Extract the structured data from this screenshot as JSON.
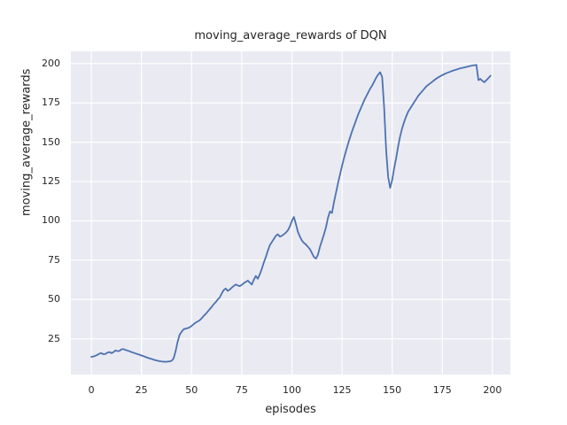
{
  "chart_data": {
    "type": "line",
    "title": "moving_average_rewards of DQN",
    "xlabel": "episodes",
    "ylabel": "moving_average_rewards",
    "xlim": [
      -10.2,
      208.9
    ],
    "ylim": [
      2.3,
      207.8
    ],
    "xticks": [
      0,
      25,
      50,
      75,
      100,
      125,
      150,
      175,
      200
    ],
    "yticks": [
      25,
      50,
      75,
      100,
      125,
      150,
      175,
      200
    ],
    "grid": true,
    "legend": false,
    "style": {
      "line_color": "#4c72b0",
      "axes_background": "#eaeaf2",
      "grid_color": "#ffffff",
      "text_color": "#262626",
      "figure_background": "#ffffff"
    },
    "series": [
      {
        "name": "moving_average_rewards",
        "x_start": 0,
        "x_step": 1,
        "values": [
          13.5,
          13.8,
          14.2,
          14.8,
          15.6,
          15.9,
          15.2,
          15.4,
          16.2,
          16.6,
          15.9,
          16.5,
          17.6,
          17.2,
          17.3,
          18.3,
          18.5,
          17.9,
          17.6,
          17.1,
          16.6,
          16.2,
          15.7,
          15.3,
          14.9,
          14.4,
          14.0,
          13.5,
          13.0,
          12.6,
          12.2,
          11.8,
          11.4,
          11.1,
          10.8,
          10.6,
          10.5,
          10.4,
          10.5,
          10.7,
          11.0,
          12.5,
          17.0,
          23.0,
          27.5,
          29.5,
          31.0,
          31.5,
          31.8,
          32.3,
          33.2,
          34.3,
          35.3,
          36.0,
          36.8,
          38.0,
          39.5,
          40.8,
          42.3,
          43.8,
          45.3,
          47.0,
          48.3,
          50.0,
          51.2,
          53.8,
          56.0,
          57.0,
          55.5,
          56.3,
          57.5,
          58.6,
          59.5,
          59.0,
          58.5,
          59.3,
          60.4,
          61.2,
          62.0,
          60.8,
          59.5,
          62.5,
          65.0,
          63.2,
          66.0,
          69.5,
          73.5,
          77.0,
          81.0,
          84.5,
          86.5,
          88.5,
          90.5,
          91.5,
          90.0,
          90.5,
          91.5,
          92.5,
          94.0,
          96.5,
          100.0,
          102.5,
          98.0,
          93.0,
          90.0,
          87.5,
          86.0,
          85.0,
          83.5,
          82.0,
          79.5,
          77.0,
          76.0,
          78.5,
          83.5,
          87.5,
          91.5,
          96.0,
          102.0,
          106.0,
          105.0,
          112.0,
          118.0,
          124.0,
          129.5,
          135.0,
          140.0,
          144.5,
          149.0,
          153.0,
          157.0,
          160.5,
          164.0,
          167.5,
          170.5,
          173.5,
          176.5,
          179.0,
          181.5,
          184.0,
          186.0,
          188.5,
          191.0,
          193.0,
          194.5,
          191.5,
          172.0,
          145.0,
          128.0,
          121.0,
          126.0,
          133.5,
          140.0,
          147.5,
          154.0,
          159.0,
          163.0,
          166.5,
          169.5,
          171.5,
          173.5,
          175.5,
          177.5,
          179.5,
          181.0,
          182.5,
          184.0,
          185.5,
          186.5,
          187.5,
          188.5,
          189.5,
          190.5,
          191.3,
          192.0,
          192.7,
          193.3,
          193.9,
          194.4,
          194.9,
          195.4,
          195.8,
          196.2,
          196.6,
          197.0,
          197.3,
          197.6,
          197.9,
          198.2,
          198.5,
          198.8,
          199.0,
          199.2,
          189.5,
          190.3,
          189.0,
          188.2,
          189.5,
          190.8,
          192.3
        ]
      }
    ]
  }
}
